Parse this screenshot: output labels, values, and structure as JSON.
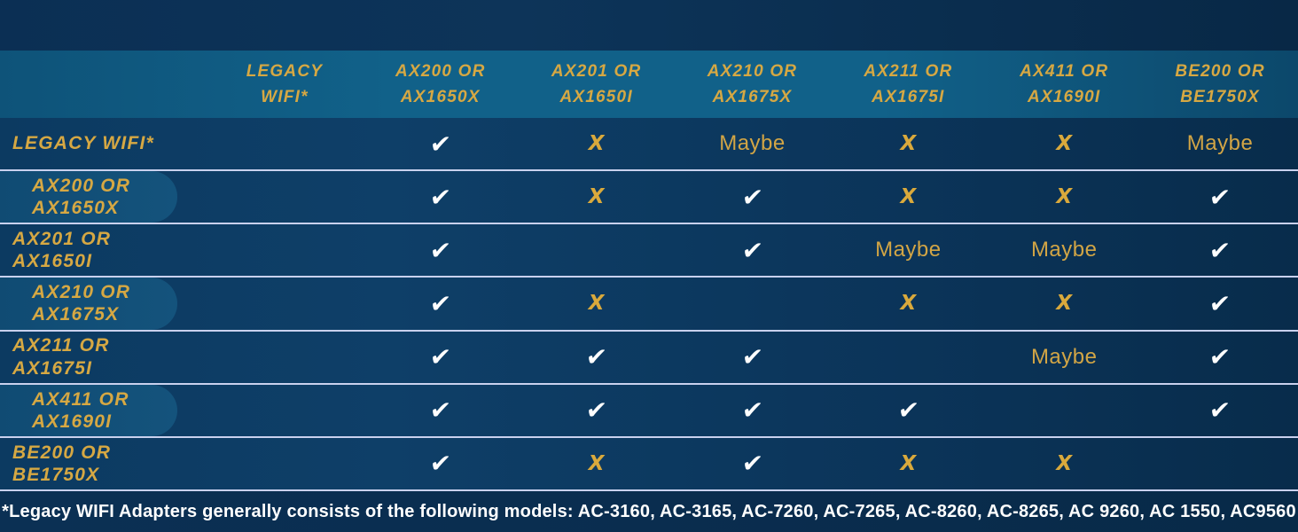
{
  "colors": {
    "background_navy": "#0a2e50",
    "header_teal": "#116189",
    "row_pill_blue": "#14537C",
    "accent_gold": "#D6A843",
    "check_white": "#FFFFFF",
    "separator_lavender": "#C9D1EE"
  },
  "symbols": {
    "check": "✔",
    "x": "X",
    "maybe": "Maybe"
  },
  "table": {
    "col_headers": [
      "LEGACY\nWIFI*",
      "AX200 OR\nAX1650X",
      "AX201 OR\nAX1650I",
      "AX210 OR\nAX1675X",
      "AX211 OR\nAX1675I",
      "AX411 OR\nAX1690I",
      "BE200 OR\nBE1750X"
    ],
    "rows": [
      {
        "label": "LEGACY WIFI*",
        "pill": false,
        "cells": [
          "",
          "check",
          "x",
          "maybe",
          "x",
          "x",
          "maybe"
        ]
      },
      {
        "label": "AX200 OR\nAX1650X",
        "pill": true,
        "cells": [
          "",
          "check",
          "x",
          "check",
          "x",
          "x",
          "check"
        ]
      },
      {
        "label": "AX201 OR\nAX1650I",
        "pill": false,
        "cells": [
          "",
          "check",
          "",
          "check",
          "maybe",
          "maybe",
          "check"
        ]
      },
      {
        "label": "AX210 OR\nAX1675X",
        "pill": true,
        "cells": [
          "",
          "check",
          "x",
          "",
          "x",
          "x",
          "check"
        ]
      },
      {
        "label": "AX211 OR\nAX1675I",
        "pill": false,
        "cells": [
          "",
          "check",
          "check",
          "check",
          "",
          "maybe",
          "check"
        ]
      },
      {
        "label": "AX411 OR\nAX1690I",
        "pill": true,
        "cells": [
          "",
          "check",
          "check",
          "check",
          "check",
          "",
          "check"
        ]
      },
      {
        "label": "BE200 OR\nBE1750X",
        "pill": false,
        "cells": [
          "",
          "check",
          "x",
          "check",
          "x",
          "x",
          ""
        ]
      }
    ]
  },
  "footnote": "*Legacy WIFI Adapters generally consists of the following models: AC-3160, AC-3165, AC-7260, AC-7265, AC-8260, AC-8265, AC 9260, AC 1550, AC9560"
}
